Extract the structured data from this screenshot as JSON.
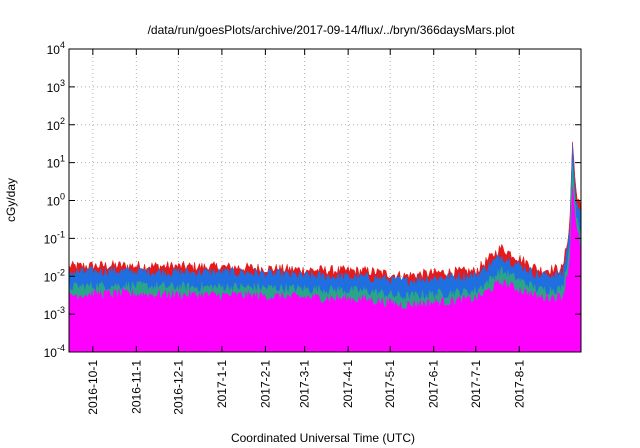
{
  "chart_data": {
    "type": "area",
    "title": "/data/run/goesPlots/archive/2017-09-14/flux/../bryn/366daysMars.plot",
    "xlabel": "Coordinated Universal Time (UTC)",
    "ylabel": "cGy/day",
    "yscale": "log",
    "ylim": [
      0.0001,
      10000
    ],
    "xlim": [
      "2016-09-14",
      "2017-09-14"
    ],
    "grid": true,
    "y_ticks": [
      {
        "value": 0.0001,
        "base": "10",
        "exp": "-4"
      },
      {
        "value": 0.001,
        "base": "10",
        "exp": "-3"
      },
      {
        "value": 0.01,
        "base": "10",
        "exp": "-2"
      },
      {
        "value": 0.1,
        "base": "10",
        "exp": "-1"
      },
      {
        "value": 1,
        "base": "10",
        "exp": "0"
      },
      {
        "value": 10,
        "base": "10",
        "exp": "1"
      },
      {
        "value": 100,
        "base": "10",
        "exp": "2"
      },
      {
        "value": 1000,
        "base": "10",
        "exp": "3"
      },
      {
        "value": 10000,
        "base": "10",
        "exp": "4"
      }
    ],
    "x_ticks": [
      {
        "label": "2016-10-1",
        "date": "2016-10-01"
      },
      {
        "label": "2016-11-1",
        "date": "2016-11-01"
      },
      {
        "label": "2016-12-1",
        "date": "2016-12-01"
      },
      {
        "label": "2017-1-1",
        "date": "2017-01-01"
      },
      {
        "label": "2017-2-1",
        "date": "2017-02-01"
      },
      {
        "label": "2017-3-1",
        "date": "2017-03-01"
      },
      {
        "label": "2017-4-1",
        "date": "2017-04-01"
      },
      {
        "label": "2017-5-1",
        "date": "2017-05-01"
      },
      {
        "label": "2017-6-1",
        "date": "2017-06-01"
      },
      {
        "label": "2017-7-1",
        "date": "2017-07-01"
      },
      {
        "label": "2017-8-1",
        "date": "2017-08-01"
      }
    ],
    "series": [
      {
        "color": "#e41a1c",
        "x": [
          "2016-09-14",
          "2016-10-15",
          "2016-12-01",
          "2017-01-15",
          "2017-03-01",
          "2017-04-15",
          "2017-05-10",
          "2017-06-05",
          "2017-07-01",
          "2017-07-19",
          "2017-08-15",
          "2017-09-01",
          "2017-09-06",
          "2017-09-08",
          "2017-09-10",
          "2017-09-14"
        ],
        "y": [
          0.016,
          0.017,
          0.016,
          0.015,
          0.013,
          0.012,
          0.009,
          0.011,
          0.012,
          0.05,
          0.013,
          0.014,
          0.2,
          40,
          2,
          0.5
        ]
      },
      {
        "color": "#1f6fe0",
        "x": [
          "2016-09-14",
          "2016-10-15",
          "2016-12-01",
          "2017-01-15",
          "2017-03-01",
          "2017-04-15",
          "2017-05-10",
          "2017-06-05",
          "2017-07-01",
          "2017-07-19",
          "2017-08-15",
          "2017-09-01",
          "2017-09-06",
          "2017-09-08",
          "2017-09-10",
          "2017-09-14"
        ],
        "y": [
          0.011,
          0.012,
          0.011,
          0.011,
          0.009,
          0.008,
          0.0065,
          0.008,
          0.009,
          0.03,
          0.009,
          0.01,
          0.12,
          25,
          1.2,
          0.3
        ]
      },
      {
        "color": "#2ba58a",
        "x": [
          "2016-09-14",
          "2016-10-15",
          "2016-12-01",
          "2017-01-15",
          "2017-03-01",
          "2017-04-15",
          "2017-05-10",
          "2017-06-05",
          "2017-07-01",
          "2017-07-19",
          "2017-08-15",
          "2017-09-01",
          "2017-09-06",
          "2017-09-08",
          "2017-09-10",
          "2017-09-14"
        ],
        "y": [
          0.0045,
          0.005,
          0.0045,
          0.0045,
          0.004,
          0.0035,
          0.0025,
          0.003,
          0.0035,
          0.012,
          0.0038,
          0.004,
          0.05,
          10,
          0.5,
          0.12
        ]
      },
      {
        "color": "#ff00ff",
        "x": [
          "2016-09-14",
          "2016-10-15",
          "2016-12-01",
          "2017-01-15",
          "2017-03-01",
          "2017-04-15",
          "2017-05-10",
          "2017-06-05",
          "2017-07-01",
          "2017-07-19",
          "2017-08-15",
          "2017-09-01",
          "2017-09-06",
          "2017-09-08",
          "2017-09-10",
          "2017-09-14"
        ],
        "y": [
          0.0028,
          0.003,
          0.0028,
          0.0027,
          0.0024,
          0.0021,
          0.0015,
          0.0018,
          0.0022,
          0.006,
          0.0024,
          0.0025,
          0.02,
          3,
          0.2,
          0.05
        ]
      }
    ]
  }
}
